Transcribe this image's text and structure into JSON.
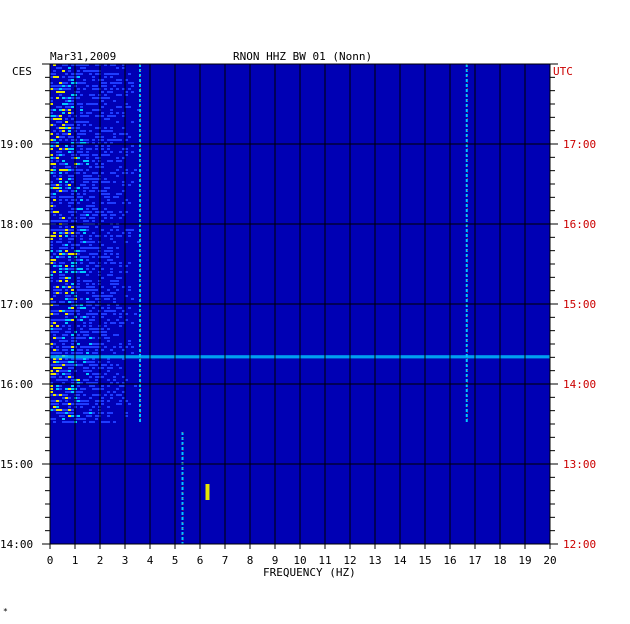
{
  "header": {
    "date": "Mar31,2009",
    "station": "RNON HHZ BW 01 (Nonn)"
  },
  "left_axis_title": "CES",
  "right_axis_title": "UTC",
  "colors": {
    "background": "#0000b4",
    "grid": "#000000",
    "left_text": "#000000",
    "right_text": "#cc0000",
    "signal_low": "#1e3cff",
    "signal_mid": "#00c8ff",
    "signal_high": "#e6e600",
    "signal_peak": "#ff3000"
  },
  "footer_mark": "*",
  "chart_data": {
    "type": "heatmap",
    "title": "RNON HHZ BW 01 (Nonn)",
    "xlabel": "FREQUENCY (HZ)",
    "x_ticks": [
      "0",
      "1",
      "2",
      "3",
      "4",
      "5",
      "6",
      "7",
      "8",
      "9",
      "10",
      "11",
      "12",
      "13",
      "14",
      "15",
      "16",
      "17",
      "18",
      "19",
      "20"
    ],
    "xlim": [
      0,
      20
    ],
    "y_ticks_left": [
      "19:00",
      "18:00",
      "17:00",
      "16:00",
      "15:00",
      "14:00"
    ],
    "y_ticks_right": [
      "17:00",
      "16:00",
      "15:00",
      "14:00",
      "13:00",
      "12:00"
    ],
    "y_tick_hours_local": [
      19,
      18,
      17,
      16,
      15,
      14
    ],
    "ylim_hours_local": [
      14.0,
      20.0
    ],
    "grid": true,
    "features": [
      {
        "name": "broadband noise",
        "f_min": 0.0,
        "f_max": 5.0,
        "t_start": 15.5,
        "t_end": 20.0
      },
      {
        "name": "line",
        "freq": 3.6,
        "t_start": 15.5,
        "t_end": 20.0
      },
      {
        "name": "line",
        "freq": 16.67,
        "t_start": 15.5,
        "t_end": 20.0
      },
      {
        "name": "line",
        "freq": 5.3,
        "t_start": 14.0,
        "t_end": 15.4
      },
      {
        "name": "burst",
        "freq": 6.3,
        "t_start": 14.55,
        "t_end": 14.75
      },
      {
        "name": "broadband event",
        "f_min": 0.0,
        "f_max": 20.0,
        "t_start": 16.32,
        "t_end": 16.36
      }
    ]
  }
}
